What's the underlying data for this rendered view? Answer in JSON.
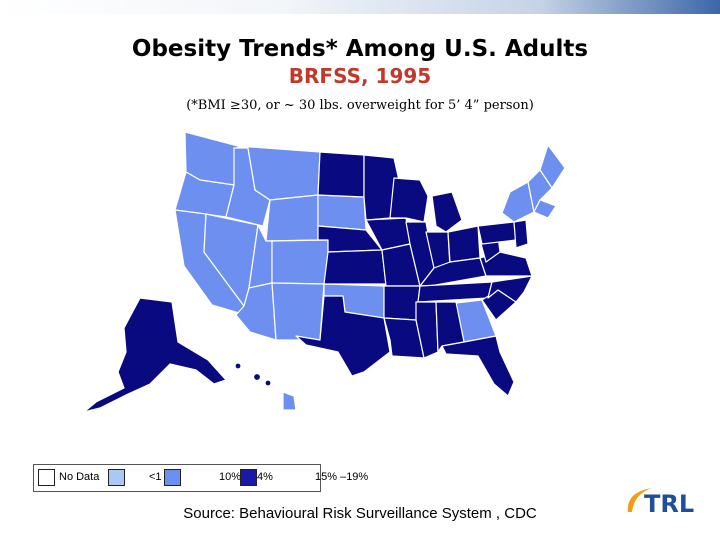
{
  "title": "Obesity Trends* Among U.S. Adults",
  "subtitle": "BRFSS, 1995",
  "note": "(*BMI ≥30, or ~ 30 lbs. overweight for 5’ 4” person)",
  "legend": {
    "items": [
      {
        "label": "No Data",
        "color": "#ffffff"
      },
      {
        "label": "<1",
        "color": "#a9c8f4"
      },
      {
        "label": "10%",
        "color": "#6d8ff0"
      },
      {
        "label": "4%",
        "color": "#1a1aa6"
      },
      {
        "label": "15% –19%",
        "color": "#0a0a80"
      }
    ]
  },
  "colors": {
    "light": "#6d8ff0",
    "dark": "#0a0a80",
    "title_red": "#c0392b"
  },
  "source": "Source: Behavioural Risk Surveillance System , CDC",
  "logo": {
    "text": "TRL",
    "icon": "trl-logo-icon"
  }
}
